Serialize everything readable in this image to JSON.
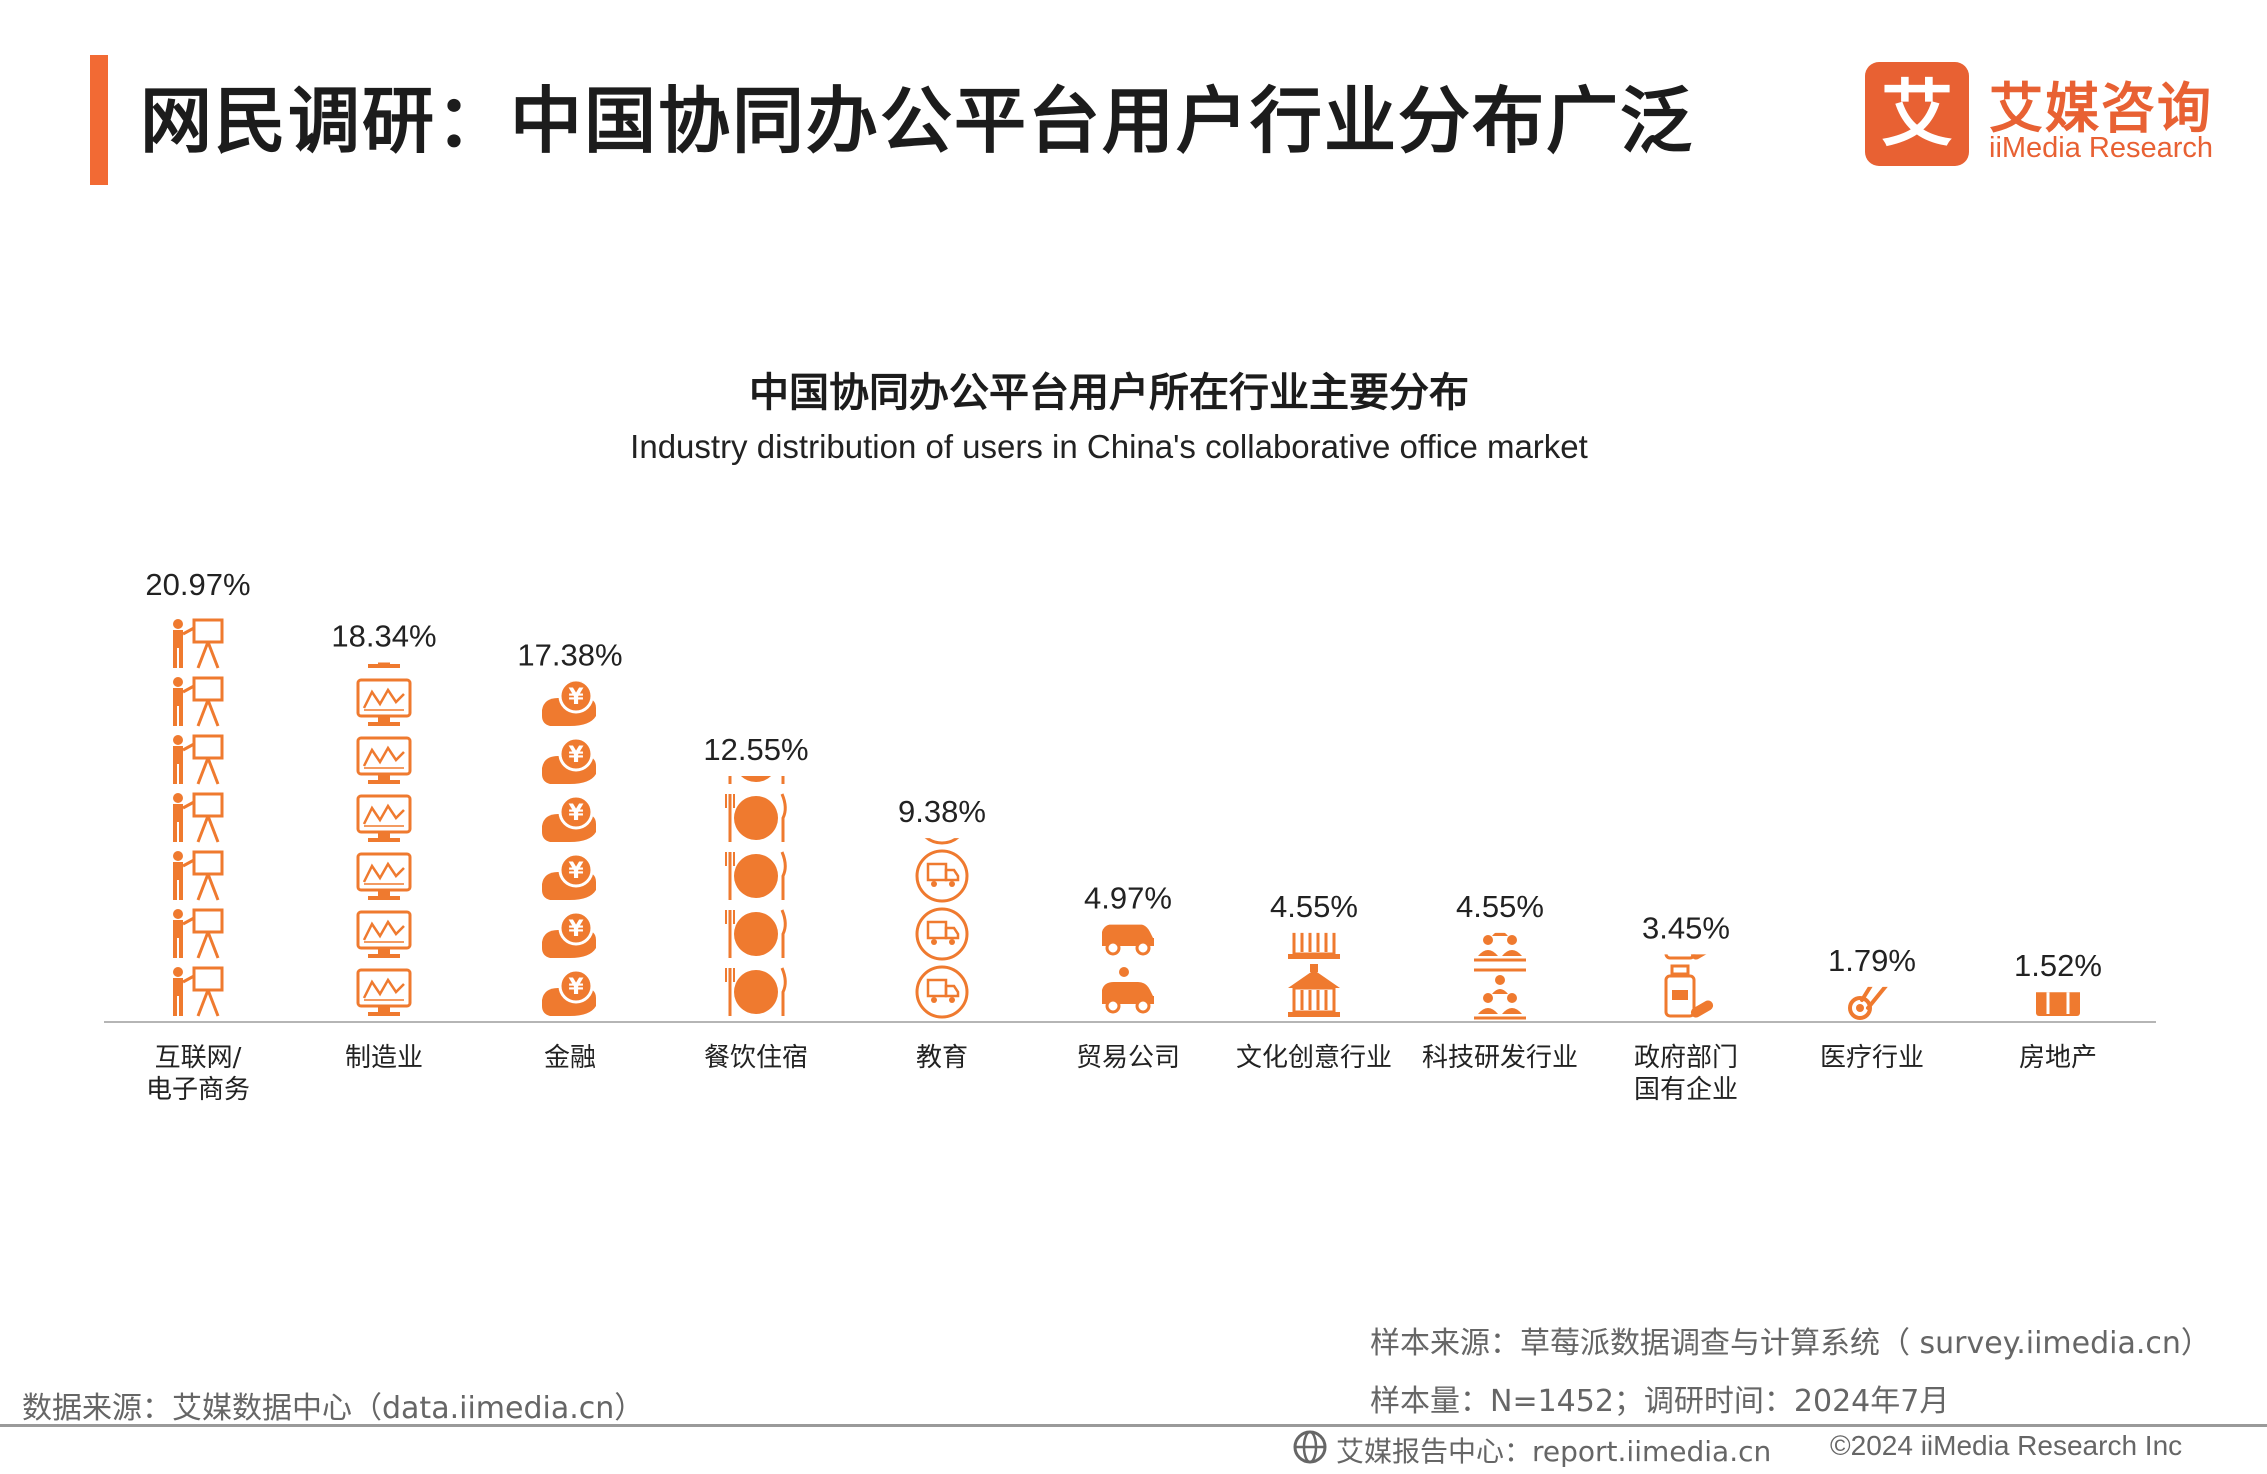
{
  "header": {
    "title": "网民调研：中国协同办公平台用户行业分布广泛"
  },
  "logo": {
    "mark": "艾",
    "name_cn": "艾媒咨询",
    "name_en": "iiMedia Research"
  },
  "colors": {
    "accent": "#f26a34",
    "icon": "#ef7a2f",
    "axis": "#b5b5b5",
    "muted_text": "#666666"
  },
  "chart_data": {
    "type": "bar",
    "title": "中国协同办公平台用户所在行业主要分布",
    "subtitle": "Industry distribution of users in China's collaborative office market",
    "unit": "%",
    "categories": [
      "互联网/\n电子商务",
      "制造业",
      "金融",
      "餐饮住宿",
      "教育",
      "贸易公司",
      "文化创意行业",
      "科技研发行业",
      "政府部门\n国有企业",
      "医疗行业",
      "房地产"
    ],
    "values": [
      20.97,
      18.34,
      17.38,
      12.55,
      9.38,
      4.97,
      4.55,
      4.55,
      3.45,
      1.79,
      1.52
    ],
    "value_labels": [
      "20.97%",
      "18.34%",
      "17.38%",
      "12.55%",
      "9.38%",
      "4.97%",
      "4.55%",
      "4.55%",
      "3.45%",
      "1.79%",
      "1.52%"
    ],
    "icons": [
      "presenter-easel-icon",
      "monitor-chart-icon",
      "hand-coin-yen-icon",
      "fork-knife-plate-icon",
      "truck-circle-icon",
      "car-icon",
      "building-pagoda-icon",
      "team-people-icon",
      "medicine-bottle-icon",
      "thermometer-icon",
      "suitcase-icon"
    ],
    "grid": false,
    "legend": "none"
  },
  "sources": {
    "data_source": "数据来源：艾媒数据中心（data.iimedia.cn）",
    "sample_source": "样本来源：草莓派数据调查与计算系统（ survey.iimedia.cn）",
    "sample_info": "样本量：N=1452；调研时间：2024年7月"
  },
  "footer": {
    "report_center": "艾媒报告中心：report.iimedia.cn",
    "copyright": "©2024  iiMedia Research  Inc"
  }
}
